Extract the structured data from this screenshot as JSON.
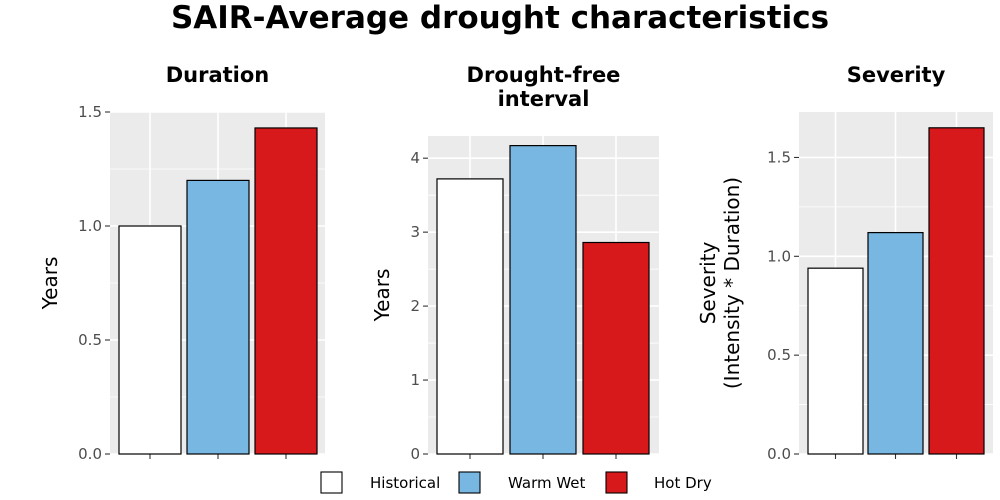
{
  "title": "SAIR-Average drought characteristics",
  "colors": {
    "panel_bg": "#ebebeb",
    "grid": "#ffffff",
    "bar_outline": "#000000",
    "tick": "#333333"
  },
  "legend": {
    "items": [
      {
        "label": "Historical",
        "color": "#ffffff"
      },
      {
        "label": "Warm Wet",
        "color": "#77b7e1"
      },
      {
        "label": "Hot Dry",
        "color": "#d7191c"
      }
    ]
  },
  "chart_data": [
    {
      "type": "bar",
      "title": [
        "Duration"
      ],
      "ylabel": [
        "Years"
      ],
      "categories": [
        "Historical",
        "Warm Wet",
        "Hot Dry"
      ],
      "values": [
        1.0,
        1.2,
        1.43
      ],
      "colors": [
        "#ffffff",
        "#77b7e1",
        "#d7191c"
      ],
      "ylim": [
        0,
        1.5
      ],
      "yticks": [
        0,
        0.5,
        1,
        1.5
      ],
      "ytick_labels": [
        "0.0",
        "0.5",
        "1.0",
        "1.5"
      ],
      "grid": true,
      "xtick_labels_shown": false
    },
    {
      "type": "bar",
      "title": [
        "Drought-free",
        "interval"
      ],
      "ylabel": [
        "Years"
      ],
      "categories": [
        "Historical",
        "Warm Wet",
        "Hot Dry"
      ],
      "values": [
        3.72,
        4.17,
        2.86
      ],
      "colors": [
        "#ffffff",
        "#77b7e1",
        "#d7191c"
      ],
      "ylim": [
        0,
        4.3
      ],
      "yticks": [
        0,
        1,
        2,
        3,
        4
      ],
      "ytick_labels": [
        "0",
        "1",
        "2",
        "3",
        "4"
      ],
      "grid": true,
      "xtick_labels_shown": false
    },
    {
      "type": "bar",
      "title": [
        "Severity"
      ],
      "ylabel": [
        "Severity",
        "(Intensity * Duration)"
      ],
      "categories": [
        "Historical",
        "Warm Wet",
        "Hot Dry"
      ],
      "values": [
        0.94,
        1.12,
        1.65
      ],
      "colors": [
        "#ffffff",
        "#77b7e1",
        "#d7191c"
      ],
      "ylim": [
        0,
        1.73
      ],
      "yticks": [
        0,
        0.5,
        1,
        1.5
      ],
      "ytick_labels": [
        "0.0",
        "0.5",
        "1.0",
        "1.5"
      ],
      "grid": true,
      "xtick_labels_shown": false
    }
  ]
}
